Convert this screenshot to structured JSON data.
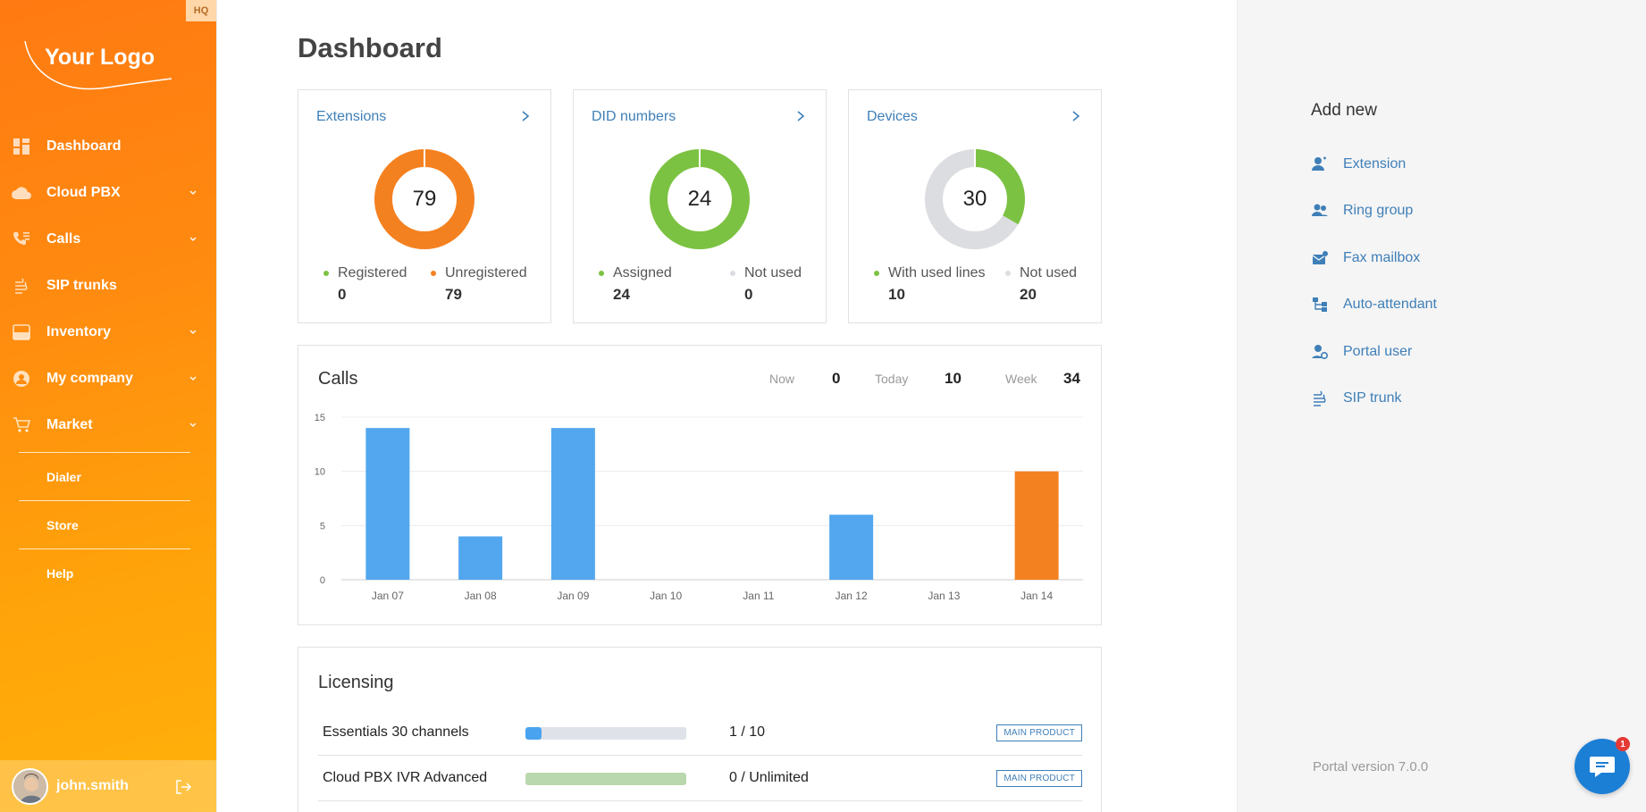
{
  "sidebar": {
    "hq_badge": "HQ",
    "logo_text": "Your Logo",
    "items": [
      {
        "label": "Dashboard",
        "icon": "dashboard-icon"
      },
      {
        "label": "Cloud PBX",
        "icon": "cloud-icon"
      },
      {
        "label": "Calls",
        "icon": "phone-list-icon"
      },
      {
        "label": "SIP trunks",
        "icon": "sip-trunk-icon"
      },
      {
        "label": "Inventory",
        "icon": "inventory-icon"
      },
      {
        "label": "My company",
        "icon": "company-icon"
      },
      {
        "label": "Market",
        "icon": "cart-icon"
      }
    ],
    "sub_items": [
      "Dialer",
      "Store",
      "Help"
    ],
    "user": {
      "name": "john.smith"
    }
  },
  "main": {
    "title": "Dashboard",
    "stats": [
      {
        "title": "Extensions",
        "total": "79",
        "legend": [
          {
            "label": "Registered",
            "value": "0",
            "color": "#7cc242"
          },
          {
            "label": "Unregistered",
            "value": "79",
            "color": "#f48120"
          }
        ],
        "ring": {
          "filled": 0,
          "total": 79
        }
      },
      {
        "title": "DID numbers",
        "total": "24",
        "legend": [
          {
            "label": "Assigned",
            "value": "24",
            "color": "#7cc242"
          },
          {
            "label": "Not used",
            "value": "0",
            "color": "#dcdde1"
          }
        ],
        "ring": {
          "filled": 24,
          "total": 24
        }
      },
      {
        "title": "Devices",
        "total": "30",
        "legend": [
          {
            "label": "With used lines",
            "value": "10",
            "color": "#7cc242"
          },
          {
            "label": "Not used",
            "value": "20",
            "color": "#dcdde1"
          }
        ],
        "ring": {
          "filled": 10,
          "total": 30
        }
      }
    ],
    "calls": {
      "title": "Calls",
      "kpis": [
        {
          "label": "Now",
          "value": "0"
        },
        {
          "label": "Today",
          "value": "10"
        },
        {
          "label": "Week",
          "value": "34"
        }
      ]
    },
    "licensing": {
      "title": "Licensing",
      "rows": [
        {
          "name": "Essentials 30 channels",
          "count": "1 / 10",
          "badge": "MAIN PRODUCT",
          "fill": 0.1,
          "fill_color": "#4aa3ef"
        },
        {
          "name": "Cloud PBX IVR Advanced",
          "count": "0 / Unlimited",
          "badge": "MAIN PRODUCT",
          "fill": 1.0,
          "fill_color": "#b9d8ae"
        }
      ]
    }
  },
  "chart_data": {
    "type": "bar",
    "categories": [
      "Jan 07",
      "Jan 08",
      "Jan 09",
      "Jan 10",
      "Jan 11",
      "Jan 12",
      "Jan 13",
      "Jan 14"
    ],
    "values": [
      14,
      4,
      14,
      0,
      0,
      6,
      0,
      10
    ],
    "bar_colors": [
      "#52a7ee",
      "#52a7ee",
      "#52a7ee",
      "#52a7ee",
      "#52a7ee",
      "#52a7ee",
      "#52a7ee",
      "#f48120"
    ],
    "yticks": [
      "0",
      "5",
      "10",
      "15"
    ],
    "ylim": [
      0,
      15
    ],
    "grid": true
  },
  "right_panel": {
    "title": "Add new",
    "items": [
      {
        "label": "Extension",
        "icon": "user-add-icon"
      },
      {
        "label": "Ring group",
        "icon": "group-icon"
      },
      {
        "label": "Fax mailbox",
        "icon": "fax-icon"
      },
      {
        "label": "Auto-attendant",
        "icon": "flow-icon"
      },
      {
        "label": "Portal user",
        "icon": "portal-user-icon"
      },
      {
        "label": "SIP trunk",
        "icon": "sip-trunk-icon"
      }
    ],
    "portal_version": "Portal version 7.0.0",
    "chat_badge": "1"
  },
  "colors": {
    "accent_blue": "#3f7fb8",
    "orange": "#f48120",
    "green": "#7cc242"
  }
}
